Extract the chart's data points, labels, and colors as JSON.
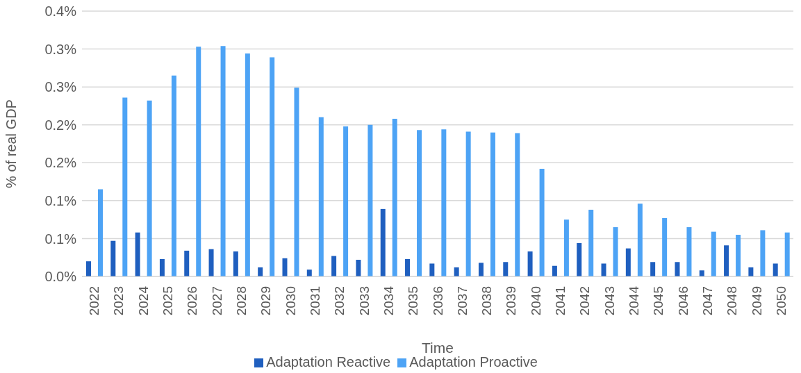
{
  "chart_data": {
    "type": "bar",
    "xlabel": "Time",
    "ylabel": "% of real GDP",
    "categories": [
      "2022",
      "2023",
      "2024",
      "2025",
      "2026",
      "2027",
      "2028",
      "2029",
      "2030",
      "2031",
      "2032",
      "2033",
      "2034",
      "2035",
      "2036",
      "2037",
      "2038",
      "2039",
      "2040",
      "2041",
      "2042",
      "2043",
      "2044",
      "2045",
      "2046",
      "2047",
      "2048",
      "2049",
      "2050"
    ],
    "series": [
      {
        "name": "Adaptation Reactive",
        "color": "#1f5fbf",
        "values": [
          0.02,
          0.047,
          0.058,
          0.023,
          0.034,
          0.036,
          0.033,
          0.012,
          0.024,
          0.009,
          0.027,
          0.022,
          0.089,
          0.023,
          0.017,
          0.012,
          0.018,
          0.019,
          0.033,
          0.014,
          0.044,
          0.017,
          0.037,
          0.019,
          0.019,
          0.008,
          0.041,
          0.012,
          0.017
        ]
      },
      {
        "name": "Adaptation Proactive",
        "color": "#4da3f5",
        "values": [
          0.115,
          0.236,
          0.232,
          0.265,
          0.303,
          0.304,
          0.294,
          0.289,
          0.249,
          0.21,
          0.198,
          0.2,
          0.208,
          0.193,
          0.194,
          0.191,
          0.19,
          0.189,
          0.142,
          0.075,
          0.088,
          0.065,
          0.096,
          0.077,
          0.065,
          0.059,
          0.055,
          0.061,
          0.058
        ]
      }
    ],
    "ylim": [
      0,
      0.35
    ],
    "yticks": [
      {
        "value": 0,
        "label": "0.0%"
      },
      {
        "value": 0.05,
        "label": "0.1%"
      },
      {
        "value": 0.1,
        "label": "0.1%"
      },
      {
        "value": 0.15,
        "label": "0.2%"
      },
      {
        "value": 0.2,
        "label": "0.2%"
      },
      {
        "value": 0.25,
        "label": "0.3%"
      },
      {
        "value": 0.3,
        "label": "0.3%"
      },
      {
        "value": 0.35,
        "label": "0.4%"
      }
    ],
    "grid": "y",
    "legend": "bottom"
  }
}
